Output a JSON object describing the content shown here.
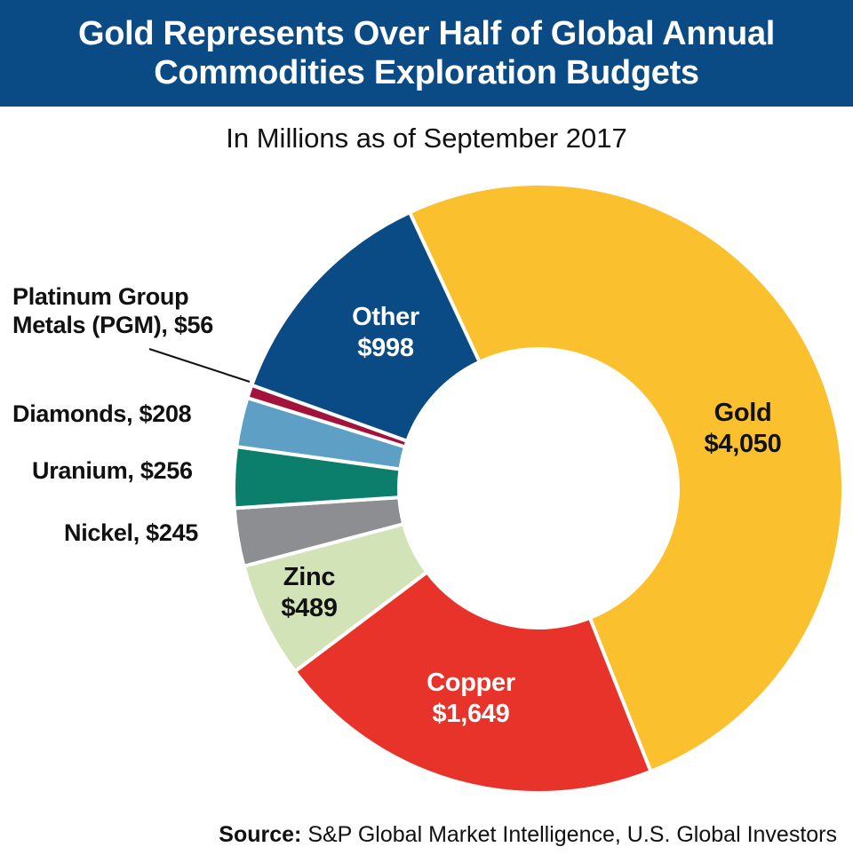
{
  "header": {
    "title_line1": "Gold Represents Over Half of Global Annual",
    "title_line2": "Commodities Exploration Budgets",
    "background": "#0a4a85"
  },
  "subtitle": "In Millions as of September 2017",
  "source": {
    "label": "Source:",
    "text": " S&P Global Market Intelligence, U.S. Global Investors"
  },
  "labels": {
    "gold": {
      "name": "Gold",
      "value": "$4,050"
    },
    "copper": {
      "name": "Copper",
      "value": "$1,649"
    },
    "zinc": {
      "name": "Zinc",
      "value": "$489"
    },
    "other": {
      "name": "Other",
      "value": "$998"
    },
    "nickel": "Nickel, $245",
    "uranium": "Uranium, $256",
    "diamonds": "Diamonds, $208",
    "pgm_line1": "Platinum Group",
    "pgm_line2": "Metals (PGM), $56"
  },
  "chart_data": {
    "type": "pie",
    "variant": "donut",
    "title": "Gold Represents Over Half of Global Annual Commodities Exploration Budgets",
    "subtitle": "In Millions as of September 2017",
    "unit": "USD millions",
    "categories": [
      "Gold",
      "Copper",
      "Zinc",
      "Nickel",
      "Uranium",
      "Diamonds",
      "Platinum Group Metals (PGM)",
      "Other"
    ],
    "values": [
      4050,
      1649,
      489,
      245,
      256,
      208,
      56,
      998
    ],
    "colors": [
      "#fbc02d",
      "#e8332a",
      "#d3e3b8",
      "#8d8e92",
      "#0b7f6b",
      "#5e9fc6",
      "#a3123a",
      "#0a4a85"
    ],
    "label_text": [
      "Gold $4,050",
      "Copper $1,649",
      "Zinc $489",
      "Nickel, $245",
      "Uranium, $256",
      "Diamonds, $208",
      "Platinum Group Metals (PGM), $56",
      "Other $998"
    ],
    "source": "S&P Global Market Intelligence, U.S. Global Investors",
    "legend": "none (direct labels)"
  }
}
